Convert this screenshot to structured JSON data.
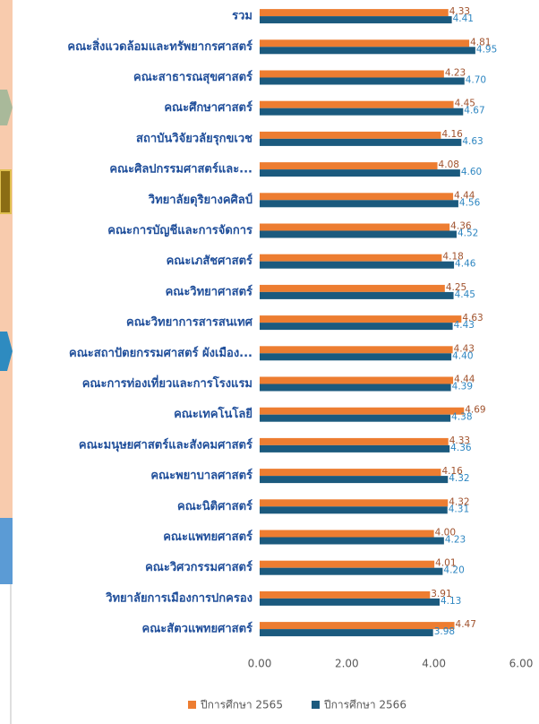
{
  "chart_data": {
    "type": "hbar",
    "categories": [
      "รวม",
      "คณะสิ่งแวดล้อมและทรัพยากรศาสตร์",
      "คณะสาธารณสุขศาสตร์",
      "คณะศึกษาศาสตร์",
      "สถาบันวิจัยวลัยรุกขเวช",
      "คณะศิลปกรรมศาสตร์และ...",
      "วิทยาลัยดุริยางคศิลป์",
      "คณะการบัญชีและการจัดการ",
      "คณะเภสัชศาสตร์",
      "คณะวิทยาศาสตร์",
      "คณะวิทยาการสารสนเทศ",
      "คณะสถาปัตยกรรมศาสตร์ ผังเมือง...",
      "คณะการท่องเที่ยวและการโรงแรม",
      "คณะเทคโนโลยี",
      "คณะมนุษยศาสตร์และสังคมศาสตร์",
      "คณะพยาบาลศาสตร์",
      "คณะนิติศาสตร์",
      "คณะแพทยศาสตร์",
      "คณะวิศวกรรมศาสตร์",
      "วิทยาลัยการเมืองการปกครอง",
      "คณะสัตวแพทยศาสตร์"
    ],
    "series": [
      {
        "name": "ปีการศึกษา 2565",
        "color": "#ed7d31",
        "label_color": "#a0522d",
        "values": [
          4.33,
          4.81,
          4.23,
          4.45,
          4.16,
          4.08,
          4.44,
          4.36,
          4.18,
          4.25,
          4.63,
          4.43,
          4.44,
          4.69,
          4.33,
          4.16,
          4.32,
          4.0,
          4.01,
          3.91,
          4.47
        ],
        "value_labels": [
          "4.33",
          "4.81",
          "4.23",
          "4.45",
          "4.16",
          "4.08",
          "4.44",
          "4.36",
          "4.18",
          "4.25",
          "4.63",
          "4.43",
          "4.44",
          "4.69",
          "4.33",
          "4.16",
          "4.32",
          "4.00",
          "4.01",
          "3.91",
          "4.47"
        ]
      },
      {
        "name": "ปีการศึกษา 2566",
        "color": "#1b5a7e",
        "label_color": "#2e86c1",
        "values": [
          4.41,
          4.95,
          4.7,
          4.67,
          4.63,
          4.6,
          4.56,
          4.52,
          4.46,
          4.45,
          4.43,
          4.4,
          4.39,
          4.38,
          4.36,
          4.32,
          4.31,
          4.23,
          4.2,
          4.13,
          3.98
        ],
        "value_labels": [
          "4.41",
          "4.95",
          "4.70",
          "4.67",
          "4.63",
          "4.60",
          "4.56",
          "4.52",
          "4.46",
          "4.45",
          "4.43",
          "4.40",
          "4.39",
          "4.38",
          "4.36",
          "4.32",
          "4.31",
          "4.23",
          "4.20",
          "4.13",
          "3.98"
        ]
      }
    ],
    "xlim": [
      0,
      6
    ],
    "xticks": [
      {
        "value": 0,
        "label": "0.00"
      },
      {
        "value": 2,
        "label": "2.00"
      },
      {
        "value": 4,
        "label": "4.00"
      },
      {
        "value": 6,
        "label": "6.00"
      }
    ],
    "legend": "bottom"
  }
}
